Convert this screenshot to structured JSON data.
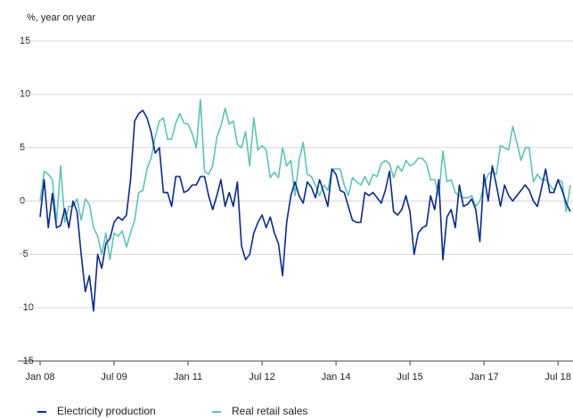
{
  "chart_data": {
    "type": "line",
    "ylabel": "%, year on year",
    "categories": [
      "Jan 08",
      null,
      null,
      null,
      null,
      null,
      null,
      null,
      null,
      null,
      null,
      null,
      null,
      null,
      null,
      null,
      null,
      null,
      "Jul 09",
      null,
      null,
      null,
      null,
      null,
      null,
      null,
      null,
      null,
      null,
      null,
      null,
      null,
      null,
      null,
      null,
      null,
      "Jan 11",
      null,
      null,
      null,
      null,
      null,
      null,
      null,
      null,
      null,
      null,
      null,
      null,
      null,
      null,
      null,
      null,
      null,
      "Jul 12",
      null,
      null,
      null,
      null,
      null,
      null,
      null,
      null,
      null,
      null,
      null,
      null,
      null,
      null,
      null,
      null,
      null,
      "Jan 14",
      null,
      null,
      null,
      null,
      null,
      null,
      null,
      null,
      null,
      null,
      null,
      null,
      null,
      null,
      null,
      null,
      null,
      "Jul 15",
      null,
      null,
      null,
      null,
      null,
      null,
      null,
      null,
      null,
      null,
      null,
      null,
      null,
      null,
      null,
      null,
      null,
      "Jan 17",
      null,
      null,
      null,
      null,
      null,
      null,
      null,
      null,
      null,
      null,
      null,
      null,
      null,
      null,
      null,
      null,
      null,
      "Jul 18",
      null,
      null,
      null
    ],
    "series": [
      {
        "name": "Electricity production",
        "color": "#0b2a8c",
        "values": [
          -1.5,
          2,
          -2.5,
          0.7,
          -2.5,
          -2.3,
          -0.7,
          -2.5,
          0,
          -1,
          -5,
          -8.5,
          -7,
          -10.3,
          -5,
          -6.3,
          -4,
          -3.5,
          -2,
          -1.5,
          -1.8,
          -1.3,
          2,
          7.5,
          8.2,
          8.5,
          7.8,
          6.5,
          4.5,
          5,
          0.8,
          0.8,
          -0.5,
          2.3,
          2.3,
          0.8,
          1,
          1.5,
          1.5,
          2.3,
          2.3,
          0.5,
          -0.8,
          0.5,
          2,
          -0.5,
          0.8,
          -0.5,
          1.8,
          -4.2,
          -5.5,
          -5,
          -3,
          -2,
          -1.3,
          -2.5,
          -1.5,
          -3,
          -4,
          -7,
          -2,
          0.5,
          1.8,
          0.5,
          -0.2,
          1.8,
          1.3,
          0.3,
          2,
          0.8,
          -0.5,
          3,
          2.5,
          1,
          0.8,
          -0.5,
          -1.8,
          -2,
          -2,
          0.8,
          0.5,
          0.8,
          0.3,
          -0.2,
          1,
          2.8,
          -1,
          -1.3,
          -0.8,
          0.5,
          -1,
          -5,
          -3,
          -2.5,
          -2.3,
          0.5,
          -0.8,
          2,
          -5.5,
          -1.5,
          -0.8,
          -2.5,
          1.5,
          -0.5,
          -0.3,
          0.2,
          -0.8,
          -3.8,
          2.5,
          0,
          3.3,
          1.5,
          -0.5,
          1.5,
          0.5,
          0,
          0.5,
          1,
          1.5,
          1,
          0,
          -0.5,
          1.2,
          3,
          0.8,
          0.8,
          2,
          1,
          -0.2,
          -1
        ]
      },
      {
        "name": "Real retail sales",
        "color": "#5ec4b6",
        "values": [
          0,
          2.8,
          2.5,
          2,
          -2,
          3.3,
          -2,
          -0.5,
          -0.5,
          0.2,
          -1.8,
          0.2,
          -0.3,
          -2.5,
          -3.3,
          -5,
          -3,
          -5.5,
          -3,
          -3.3,
          -2.8,
          -4.3,
          -3,
          -1.8,
          0.8,
          1,
          3,
          4,
          6,
          7.5,
          7.8,
          5.8,
          5.8,
          7.3,
          8.2,
          7.3,
          7.2,
          6.3,
          5,
          9.5,
          2.8,
          2.5,
          3.3,
          6,
          7,
          8.7,
          7.2,
          7.5,
          5.3,
          5,
          6.5,
          3.3,
          7.8,
          4.8,
          5.2,
          4.8,
          2.2,
          2.7,
          2.2,
          5,
          3.3,
          3.8,
          0.5,
          3.8,
          5.5,
          2.5,
          2.3,
          1.5,
          0.5,
          1.5,
          1,
          3,
          3,
          3,
          1.5,
          0.5,
          2.2,
          1.8,
          1.5,
          2.3,
          1.5,
          2.5,
          2.3,
          3.5,
          3.8,
          3.5,
          2.2,
          3.3,
          2.8,
          3.8,
          3.3,
          3.5,
          4,
          4,
          3.5,
          2,
          2,
          0.5,
          4.7,
          1.8,
          2,
          0.8,
          0.5,
          0.3,
          0.3,
          0.5,
          -0.5,
          0,
          1.5,
          2.5,
          2.8,
          2.5,
          5.2,
          5,
          4.8,
          7,
          5.5,
          3.8,
          5,
          5,
          1.8,
          2.5,
          2,
          2,
          1.5,
          1,
          2,
          1.8,
          -1,
          1.5
        ]
      }
    ],
    "ylim": [
      -15,
      15
    ],
    "yticks": [
      15,
      10,
      5,
      0,
      -5,
      -10,
      -15
    ],
    "grid": true,
    "legend": "bottom"
  }
}
